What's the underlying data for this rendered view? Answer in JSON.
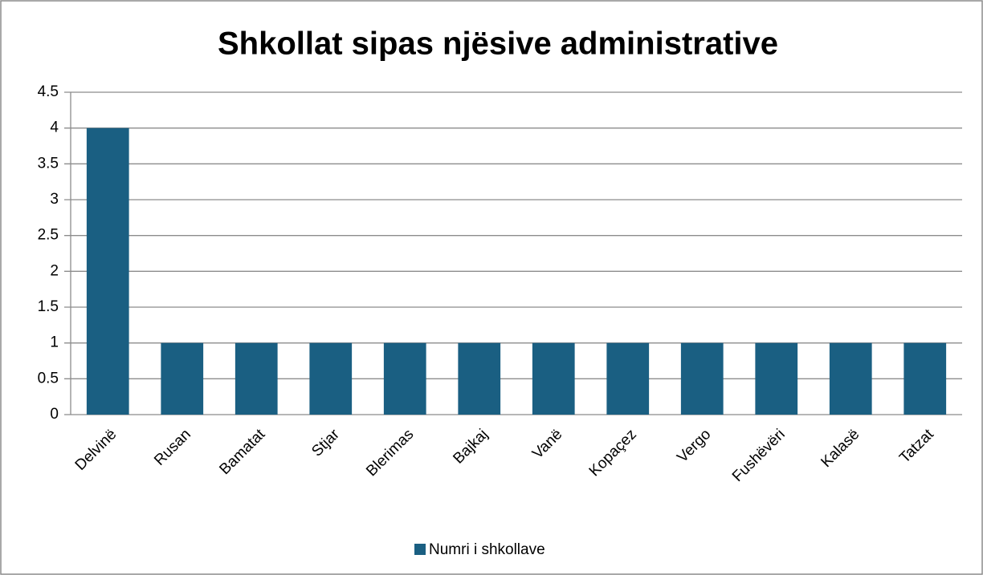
{
  "chart_data": {
    "type": "bar",
    "title": "Shkollat sipas njësive administrative",
    "categories": [
      "Delvinë",
      "Rusan",
      "Bamatat",
      "Stjar",
      "Blerimas",
      "Bajkaj",
      "Vanë",
      "Kopaçez",
      "Vergo",
      "Fushëvëri",
      "Kalasë",
      "Tatzat"
    ],
    "series": [
      {
        "name": "Numri i shkollave",
        "color": "#1a5f82",
        "values": [
          4,
          1,
          1,
          1,
          1,
          1,
          1,
          1,
          1,
          1,
          1,
          1
        ]
      }
    ],
    "ylim": [
      0,
      4.5
    ],
    "yticks": [
      0,
      0.5,
      1,
      1.5,
      2,
      2.5,
      3,
      3.5,
      4,
      4.5
    ],
    "grid": true,
    "legend": "bottom"
  }
}
